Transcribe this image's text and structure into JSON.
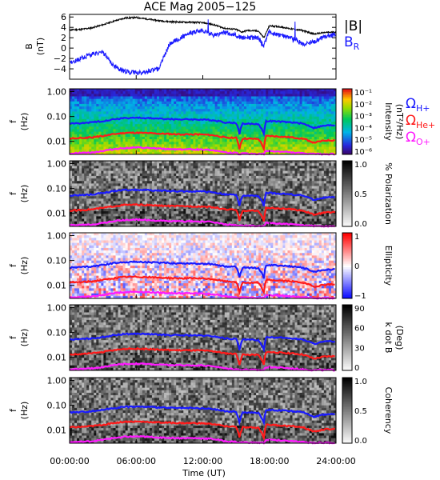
{
  "chart_data": [
    {
      "type": "line",
      "title": "ACE Mag 2005−125",
      "ylabel": "B",
      "yunit": "(nT)",
      "ylim": [
        -6,
        6.5
      ],
      "yticks": [
        "6",
        "4",
        "2",
        "0",
        "−2",
        "−4"
      ],
      "ytick_values": [
        6,
        4,
        2,
        0,
        -2,
        -4
      ],
      "series": [
        {
          "name": "|B|",
          "color": "#000000",
          "x_hours": [
            0,
            1,
            2,
            3,
            4,
            5,
            6,
            7,
            8,
            9,
            10,
            11,
            12,
            13,
            14,
            15,
            15.5,
            16,
            17,
            17.5,
            18,
            19,
            20,
            21,
            22,
            23,
            24
          ],
          "values": [
            3.5,
            3.6,
            3.9,
            4.5,
            5.2,
            5.8,
            5.9,
            5.6,
            5.3,
            5.1,
            5.0,
            5.0,
            4.9,
            4.5,
            3.8,
            3.6,
            3.1,
            3.4,
            3.3,
            2.0,
            4.3,
            4.1,
            3.7,
            3.4,
            2.7,
            3.0,
            3.1
          ]
        },
        {
          "name": "B",
          "sub": "R",
          "color": "#1a1aff",
          "x_hours": [
            0,
            1,
            2,
            3,
            4,
            5,
            6,
            7,
            8,
            9,
            10,
            11,
            12,
            13,
            14,
            15,
            15.5,
            16,
            17,
            17.5,
            18,
            19,
            20,
            21,
            22,
            23,
            24
          ],
          "values": [
            -3.0,
            -2.0,
            -1.2,
            -0.8,
            -3.5,
            -4.5,
            -4.8,
            -4.6,
            -4.0,
            0.8,
            2.0,
            3.0,
            3.4,
            2.5,
            3.0,
            2.4,
            2.0,
            2.0,
            2.0,
            0.5,
            3.2,
            2.4,
            2.0,
            0.8,
            1.2,
            2.2,
            2.6
          ]
        }
      ]
    },
    {
      "type": "heatmap",
      "ylabel": "f",
      "yunit": "(Hz)",
      "yscale": "log",
      "ylim": [
        0.003,
        1.3
      ],
      "yticks": [
        "1.00",
        "0.10",
        "0.01"
      ],
      "colorbar_label": "Intensity",
      "colorbar_unit": "(nT²/Hz)",
      "colorbar_ticks": [
        "10⁻¹",
        "10⁻²",
        "10⁻³",
        "10⁻⁴",
        "10⁻⁵",
        "10⁻⁶"
      ],
      "colormap": "rainbow"
    },
    {
      "type": "heatmap",
      "ylabel": "f",
      "yunit": "(Hz)",
      "yscale": "log",
      "yticks": [
        "1.00",
        "0.10",
        "0.01"
      ],
      "colorbar_label": "% Polarization",
      "colorbar_ticks": [
        "1.0",
        "0.5",
        "0.0"
      ],
      "colormap": "gray"
    },
    {
      "type": "heatmap",
      "ylabel": "f",
      "yunit": "(Hz)",
      "yscale": "log",
      "yticks": [
        "1.00",
        "0.10",
        "0.01"
      ],
      "colorbar_label": "Ellipticity",
      "colorbar_ticks": [
        "1",
        "0",
        "−1"
      ],
      "colormap": "blue-white-red"
    },
    {
      "type": "heatmap",
      "ylabel": "f",
      "yunit": "(Hz)",
      "yscale": "log",
      "yticks": [
        "1.00",
        "0.10",
        "0.01"
      ],
      "colorbar_label": "k dot B",
      "colorbar_unit": "(Deg)",
      "colorbar_ticks": [
        "90",
        "60",
        "30",
        "0"
      ],
      "colormap": "gray"
    },
    {
      "type": "heatmap",
      "ylabel": "f",
      "yunit": "(Hz)",
      "yscale": "log",
      "yticks": [
        "1.00",
        "0.10",
        "0.01"
      ],
      "colorbar_label": "Coherency",
      "colorbar_ticks": [
        "1.0",
        "0.5",
        "0.0"
      ],
      "colormap": "gray"
    }
  ],
  "gyrofrequencies": [
    {
      "name": "Ω",
      "sub": "H+",
      "color": "#1a1aff",
      "x_hours": [
        0,
        1,
        2,
        3,
        4,
        5,
        6,
        7,
        8,
        9,
        10,
        11,
        12,
        13,
        14,
        15,
        15.3,
        15.6,
        16,
        17,
        17.5,
        17.7,
        18,
        19,
        20,
        21,
        22,
        23,
        24
      ],
      "values_hz": [
        0.052,
        0.054,
        0.058,
        0.066,
        0.078,
        0.087,
        0.089,
        0.086,
        0.082,
        0.079,
        0.077,
        0.077,
        0.075,
        0.07,
        0.058,
        0.055,
        0.02,
        0.052,
        0.051,
        0.05,
        0.02,
        0.065,
        0.066,
        0.062,
        0.058,
        0.052,
        0.035,
        0.043,
        0.045
      ]
    },
    {
      "name": "Ω",
      "sub": "He+",
      "color": "#ff1a1a",
      "x_hours": [
        0,
        1,
        2,
        3,
        4,
        5,
        6,
        7,
        8,
        9,
        10,
        11,
        12,
        13,
        14,
        15,
        15.3,
        15.6,
        16,
        17,
        17.5,
        17.7,
        18,
        19,
        20,
        21,
        22,
        23,
        24
      ],
      "values_hz": [
        0.013,
        0.0135,
        0.0145,
        0.0165,
        0.0195,
        0.022,
        0.0222,
        0.0215,
        0.0205,
        0.0198,
        0.0193,
        0.0193,
        0.0188,
        0.0175,
        0.0145,
        0.0138,
        0.005,
        0.013,
        0.0128,
        0.0125,
        0.005,
        0.0163,
        0.0165,
        0.0155,
        0.0145,
        0.013,
        0.0088,
        0.0108,
        0.0112
      ]
    },
    {
      "name": "Ω",
      "sub": "O+",
      "color": "#ff1aff",
      "x_hours": [
        0,
        1,
        2,
        3,
        4,
        5,
        6,
        7,
        8,
        9,
        10,
        11,
        12,
        13,
        14,
        15,
        15.3,
        15.6,
        16,
        17,
        17.5,
        17.7,
        18,
        19,
        20,
        21,
        22,
        23,
        24
      ],
      "values_hz": [
        0.0033,
        0.0034,
        0.0036,
        0.0041,
        0.0049,
        0.0054,
        0.0056,
        0.0054,
        0.0051,
        0.0049,
        0.0048,
        0.0048,
        0.0047,
        0.0044,
        0.0036,
        0.0034,
        0.0031,
        0.0033,
        0.0032,
        0.0031,
        0.0031,
        0.0041,
        0.0041,
        0.0039,
        0.0036,
        0.0033,
        0.0031,
        0.0031,
        0.0031
      ]
    }
  ],
  "x_axis": {
    "label": "Time (UT)",
    "ticks": [
      "00:00:00",
      "06:00:00",
      "12:00:00",
      "18:00:00",
      "24:00:00"
    ],
    "tick_hours": [
      0,
      6,
      12,
      18,
      24
    ]
  },
  "colors": {
    "he_line": "#ff1a1a",
    "h_line": "#1a1aff",
    "o_line": "#ff1aff"
  }
}
